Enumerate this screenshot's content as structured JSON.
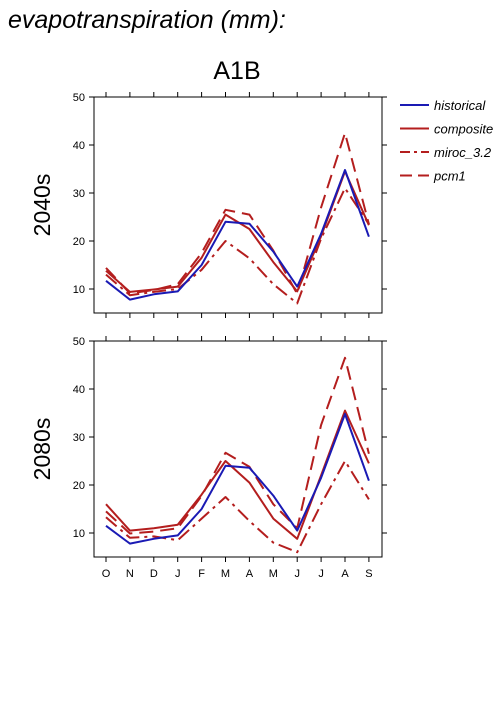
{
  "title": "evapotranspiration (mm):",
  "scenario": "A1B",
  "legend": [
    {
      "name": "historical",
      "color": "#1a1ab4",
      "dash": "solid"
    },
    {
      "name": "composite",
      "color": "#b41e1e",
      "dash": "solid"
    },
    {
      "name": "miroc_3.2",
      "color": "#b41e1e",
      "dash": "dashdot"
    },
    {
      "name": "pcm1",
      "color": "#b41e1e",
      "dash": "dash"
    }
  ],
  "chart_data": [
    {
      "type": "line",
      "ylabel": "2040s",
      "ylim": [
        5,
        50
      ],
      "yticks": [
        10,
        20,
        30,
        40,
        50
      ],
      "categories": [
        "O",
        "N",
        "D",
        "J",
        "F",
        "M",
        "A",
        "M",
        "J",
        "J",
        "A",
        "S"
      ],
      "series": [
        {
          "name": "historical",
          "values": [
            11.7,
            7.8,
            8.9,
            9.5,
            15.0,
            24.0,
            23.6,
            17.8,
            10.5,
            21.5,
            34.8,
            20.9
          ]
        },
        {
          "name": "composite",
          "values": [
            13.8,
            9.4,
            9.9,
            10.5,
            16.5,
            25.5,
            22.5,
            15.6,
            9.5,
            21.0,
            34.5,
            23.3
          ]
        },
        {
          "name": "miroc_3.2",
          "values": [
            13.0,
            8.7,
            9.4,
            10.0,
            14.0,
            20.0,
            16.4,
            11.0,
            7.0,
            20.5,
            31.0,
            23.5
          ]
        },
        {
          "name": "pcm1",
          "values": [
            14.4,
            9.1,
            9.8,
            11.0,
            17.5,
            26.5,
            25.5,
            18.0,
            9.0,
            27.0,
            42.5,
            23.5
          ]
        }
      ]
    },
    {
      "type": "line",
      "ylabel": "2080s",
      "xlabel": "",
      "ylim": [
        5,
        50
      ],
      "yticks": [
        10,
        20,
        30,
        40,
        50
      ],
      "categories": [
        "O",
        "N",
        "D",
        "J",
        "F",
        "M",
        "A",
        "M",
        "J",
        "J",
        "A",
        "S"
      ],
      "series": [
        {
          "name": "historical",
          "values": [
            11.5,
            7.8,
            8.8,
            9.5,
            15.0,
            24.0,
            23.6,
            17.8,
            10.5,
            21.5,
            34.8,
            20.9
          ]
        },
        {
          "name": "composite",
          "values": [
            16.0,
            10.5,
            11.0,
            11.7,
            18.0,
            25.0,
            20.5,
            13.0,
            8.8,
            22.0,
            35.5,
            24.5
          ]
        },
        {
          "name": "miroc_3.2",
          "values": [
            13.3,
            9.0,
            9.3,
            8.5,
            13.0,
            17.5,
            12.5,
            8.0,
            6.0,
            16.0,
            25.0,
            17.0
          ]
        },
        {
          "name": "pcm1",
          "values": [
            14.5,
            9.9,
            10.3,
            11.0,
            17.7,
            26.7,
            23.8,
            16.0,
            11.0,
            32.5,
            46.5,
            26.5
          ]
        }
      ]
    }
  ]
}
